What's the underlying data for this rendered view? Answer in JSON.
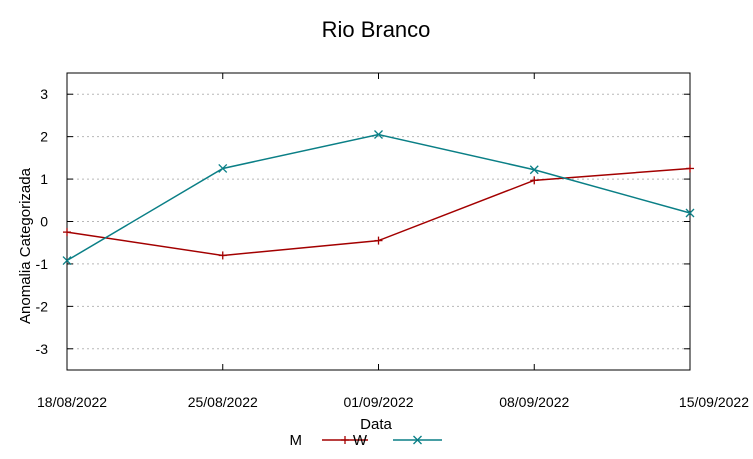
{
  "chart_data": {
    "type": "line",
    "title": "Rio Branco",
    "xlabel": "Data",
    "ylabel": "Anomalia Categorizada",
    "categories": [
      "18/08/2022",
      "25/08/2022",
      "01/09/2022",
      "08/09/2022",
      "15/09/2022"
    ],
    "yticks": [
      -3,
      -2,
      -1,
      0,
      1,
      2,
      3
    ],
    "ylim": [
      -3.5,
      3.5
    ],
    "grid": true,
    "legend_position": "bottom",
    "series": [
      {
        "name": "M",
        "values": [
          -0.25,
          -0.8,
          -0.45,
          0.97,
          1.25
        ],
        "color": "#a30000",
        "marker": "plus"
      },
      {
        "name": "W",
        "values": [
          -0.92,
          1.25,
          2.05,
          1.22,
          0.2
        ],
        "color": "#0a7f86",
        "marker": "x"
      }
    ]
  }
}
